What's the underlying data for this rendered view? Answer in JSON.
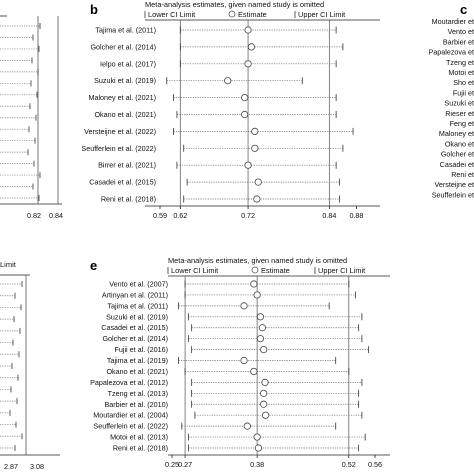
{
  "figure": {
    "left_a": {
      "tick_labels": [
        "0.82",
        "0.84"
      ],
      "n_rows": 16
    },
    "left_d": {
      "header_fragment": "Limit",
      "tick_labels": [
        "2.87",
        "3.08"
      ],
      "n_rows": 15
    },
    "right_c": {
      "letter": "c",
      "studies": [
        "Moutardier et",
        "Vento et",
        "Barbier et",
        "Papalezova et",
        "Tzeng et",
        "Motoi et",
        "Sho et",
        "Fujii et",
        "Suzuki et",
        "Rieser et",
        "Feng et",
        "Maloney et",
        "Okano et",
        "Golcher et",
        "Casadei et",
        "Reni et",
        "Versteijne et",
        "Seufferlein et"
      ]
    }
  },
  "chart_data": [
    {
      "panel": "b",
      "type": "scatter",
      "title": "Meta-analysis estimates, given named study is omitted",
      "legend": [
        "Lower CI Limit",
        "Estimate",
        "Upper CI Limit"
      ],
      "xlim": [
        0.59,
        0.9
      ],
      "ticks": [
        0.59,
        0.62,
        0.72,
        0.84,
        0.88
      ],
      "tick_labels": [
        "0.59",
        "0.62",
        "0.72",
        "0.84",
        "0.88"
      ],
      "ref_lines": [
        0.62,
        0.72,
        0.84
      ],
      "studies": [
        {
          "label": "Tajima et al. (2011)",
          "lower": 0.62,
          "estimate": 0.72,
          "upper": 0.85
        },
        {
          "label": "Golcher et al. (2014)",
          "lower": 0.62,
          "estimate": 0.725,
          "upper": 0.86
        },
        {
          "label": "Ielpo et al. (2017)",
          "lower": 0.62,
          "estimate": 0.72,
          "upper": 0.85
        },
        {
          "label": "Suzuki et al. (2019)",
          "lower": 0.6,
          "estimate": 0.69,
          "upper": 0.8
        },
        {
          "label": "Maloney et al. (2021)",
          "lower": 0.61,
          "estimate": 0.715,
          "upper": 0.85
        },
        {
          "label": "Okano et al. (2021)",
          "lower": 0.615,
          "estimate": 0.715,
          "upper": 0.85
        },
        {
          "label": "Versteijne et al. (2022)",
          "lower": 0.61,
          "estimate": 0.73,
          "upper": 0.875
        },
        {
          "label": "Seufferlein et al. (2022)",
          "lower": 0.625,
          "estimate": 0.73,
          "upper": 0.86
        },
        {
          "label": "Birrer et al. (2021)",
          "lower": 0.615,
          "estimate": 0.72,
          "upper": 0.85
        },
        {
          "label": "Casadei et al. (2015)",
          "lower": 0.63,
          "estimate": 0.735,
          "upper": 0.855
        },
        {
          "label": "Reni et al. (2018)",
          "lower": 0.625,
          "estimate": 0.733,
          "upper": 0.855
        }
      ]
    },
    {
      "panel": "e",
      "type": "scatter",
      "title": "Meta-analysis estimates, given named study is omitted",
      "legend": [
        "Lower CI Limit",
        "Estimate",
        "Upper CI Limit"
      ],
      "xlim": [
        0.25,
        0.56
      ],
      "ticks": [
        0.25,
        0.27,
        0.38,
        0.52,
        0.56
      ],
      "tick_labels": [
        "0.25",
        "0.27",
        "0.38",
        "0.52",
        "0.56"
      ],
      "ref_lines": [
        0.27,
        0.38,
        0.52
      ],
      "studies": [
        {
          "label": "Vento et al. (2007)",
          "lower": 0.27,
          "estimate": 0.375,
          "upper": 0.52
        },
        {
          "label": "Artinyan et al. (2011)",
          "lower": 0.27,
          "estimate": 0.38,
          "upper": 0.53
        },
        {
          "label": "Tajima et al. (2011)",
          "lower": 0.26,
          "estimate": 0.36,
          "upper": 0.49
        },
        {
          "label": "Suzuki et al. (2019)",
          "lower": 0.275,
          "estimate": 0.385,
          "upper": 0.54
        },
        {
          "label": "Casadei et al. (2015)",
          "lower": 0.28,
          "estimate": 0.388,
          "upper": 0.535
        },
        {
          "label": "Golcher et al. (2014)",
          "lower": 0.275,
          "estimate": 0.385,
          "upper": 0.54
        },
        {
          "label": "Fujii et al. (2016)",
          "lower": 0.28,
          "estimate": 0.39,
          "upper": 0.55
        },
        {
          "label": "Tajima et al. (2019)",
          "lower": 0.26,
          "estimate": 0.36,
          "upper": 0.5
        },
        {
          "label": "Okano et al. (2021)",
          "lower": 0.27,
          "estimate": 0.375,
          "upper": 0.52
        },
        {
          "label": "Papalezova et al. (2012)",
          "lower": 0.28,
          "estimate": 0.392,
          "upper": 0.54
        },
        {
          "label": "Tzeng et al. (2013)",
          "lower": 0.28,
          "estimate": 0.39,
          "upper": 0.535
        },
        {
          "label": "Barbier et al. (2010)",
          "lower": 0.28,
          "estimate": 0.39,
          "upper": 0.535
        },
        {
          "label": "Moutardier et al. (2004)",
          "lower": 0.285,
          "estimate": 0.393,
          "upper": 0.54
        },
        {
          "label": "Seufferlein et al. (2022)",
          "lower": 0.265,
          "estimate": 0.365,
          "upper": 0.5
        },
        {
          "label": "Motoi et al. (2013)",
          "lower": 0.275,
          "estimate": 0.38,
          "upper": 0.545
        },
        {
          "label": "Reni et al. (2018)",
          "lower": 0.275,
          "estimate": 0.382,
          "upper": 0.535
        }
      ]
    }
  ]
}
